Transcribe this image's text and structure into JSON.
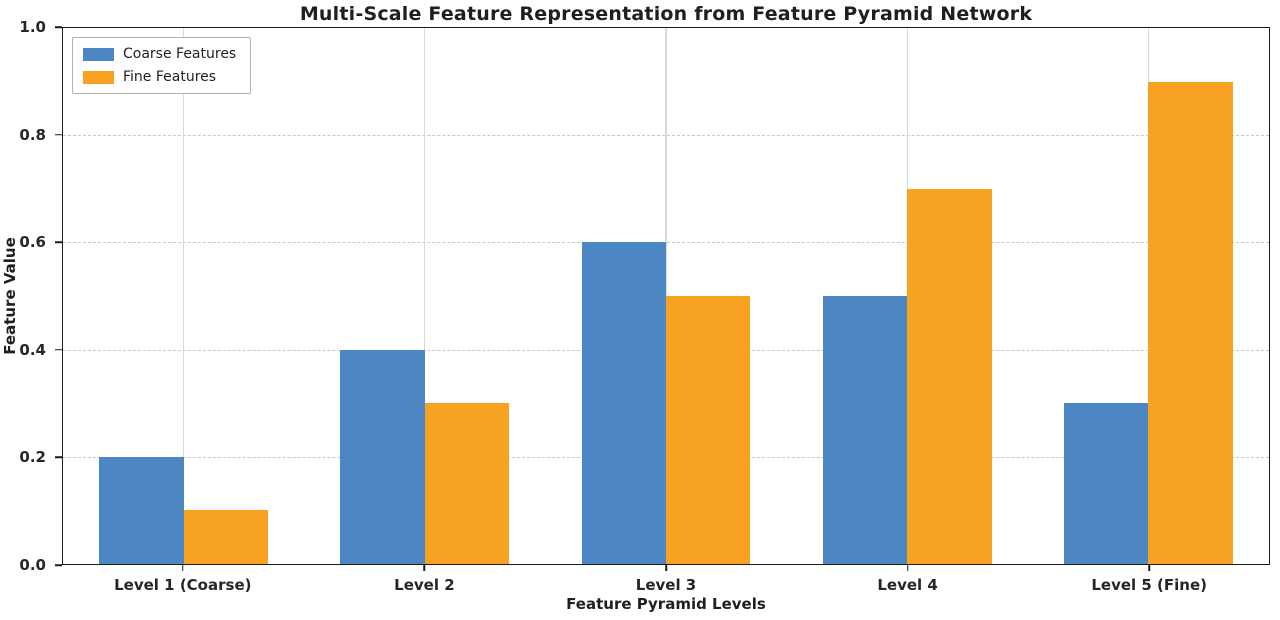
{
  "chart_data": {
    "type": "bar",
    "title": "Multi-Scale Feature Representation from Feature Pyramid Network",
    "xlabel": "Feature Pyramid Levels",
    "ylabel": "Feature Value",
    "categories": [
      "Level 1 (Coarse)",
      "Level 2",
      "Level 3",
      "Level 4",
      "Level 5 (Fine)"
    ],
    "series": [
      {
        "name": "Coarse Features",
        "color": "#4c86c3",
        "values": [
          0.2,
          0.4,
          0.6,
          0.5,
          0.3
        ]
      },
      {
        "name": "Fine Features",
        "color": "#f7a220",
        "values": [
          0.1,
          0.3,
          0.5,
          0.7,
          0.9
        ]
      }
    ],
    "ylim": [
      0.0,
      1.0
    ],
    "yticks": [
      "0.0",
      "0.2",
      "0.4",
      "0.6",
      "0.8",
      "1.0"
    ],
    "bar_width_fraction": 0.35,
    "grid": "horizontal dashed + vertical light at category centers",
    "legend_position": "upper left"
  }
}
